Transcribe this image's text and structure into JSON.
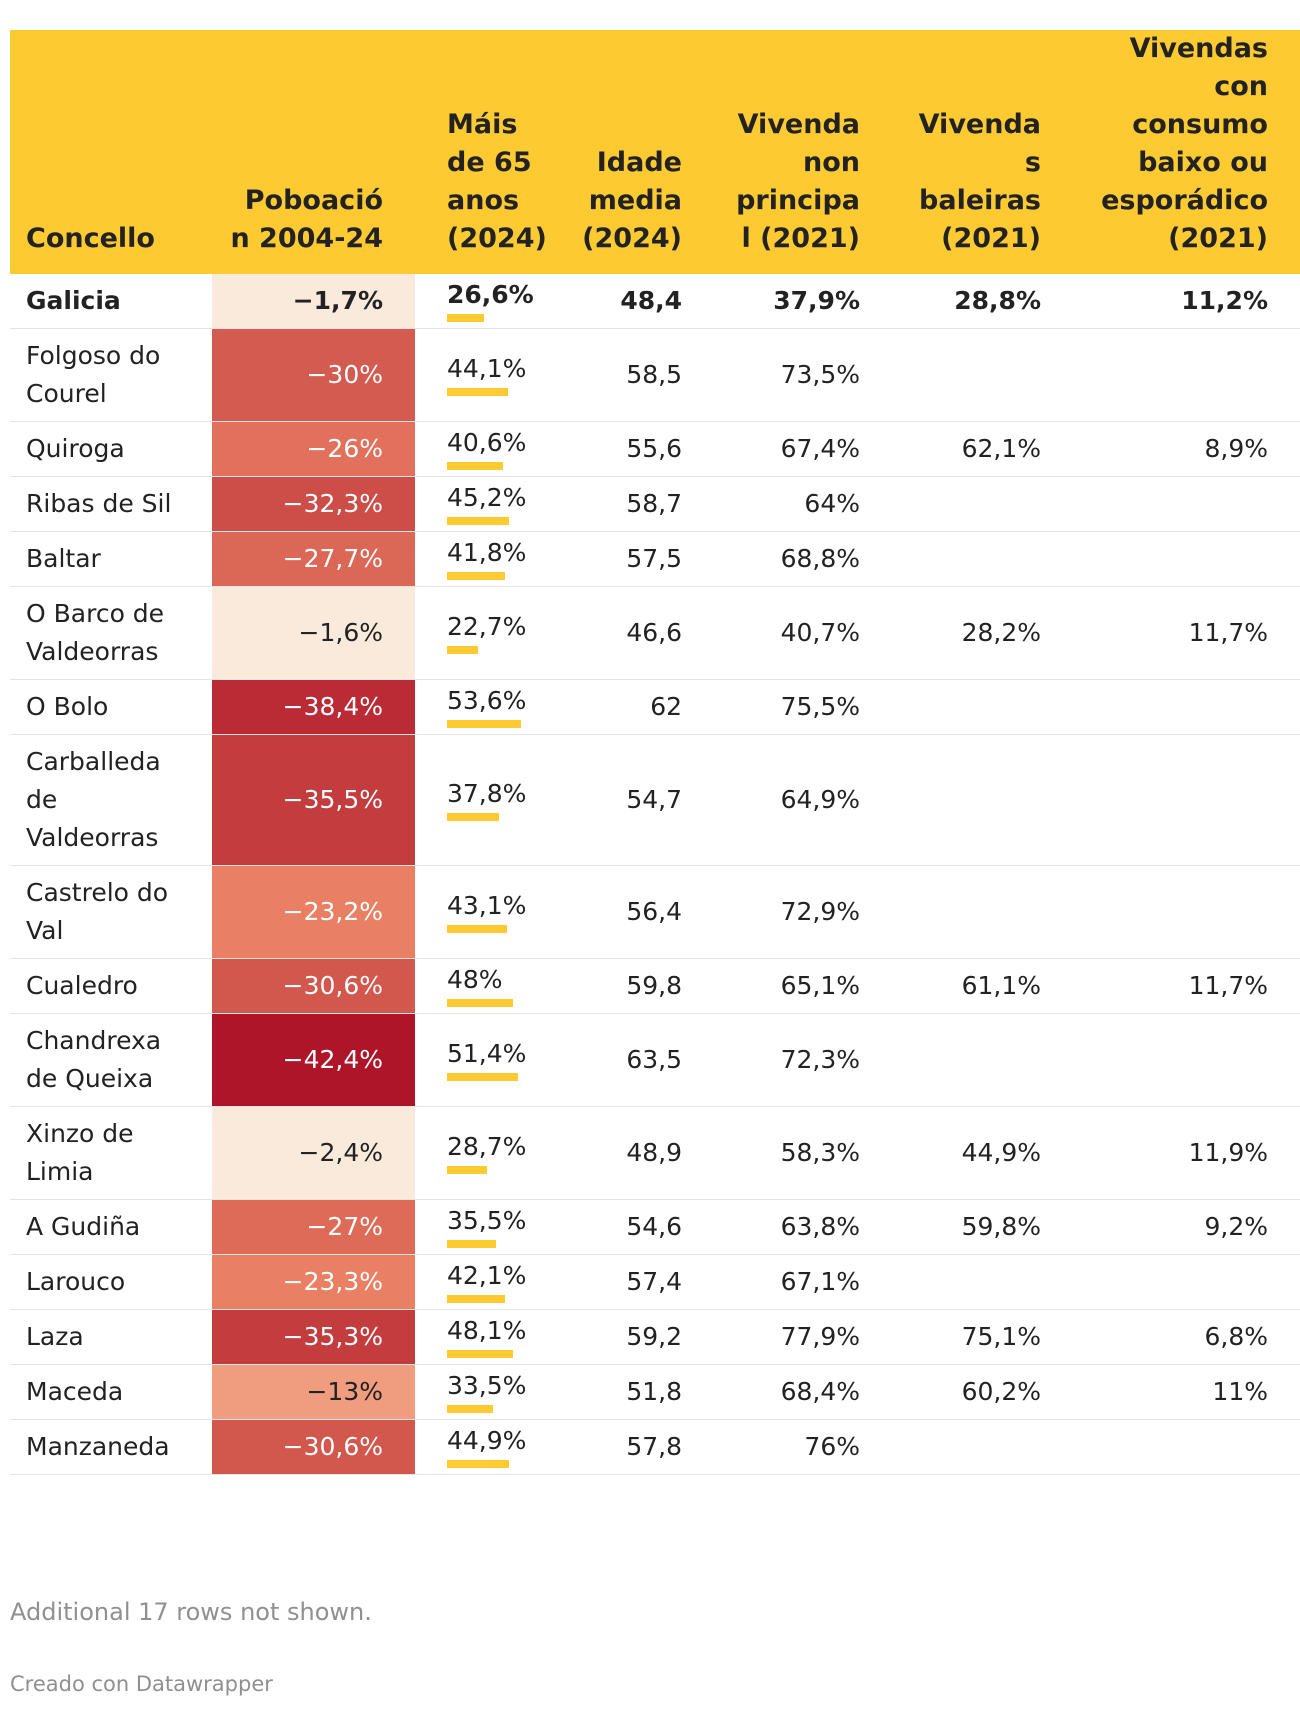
{
  "columns": [
    {
      "key": "name",
      "label": "Concello"
    },
    {
      "key": "pop",
      "label": "Poboación 2004-24"
    },
    {
      "key": "over65",
      "label": "Máis de 65 anos (2024)"
    },
    {
      "key": "age",
      "label": "Idade media (2024)"
    },
    {
      "key": "nonprincipal",
      "label": "Vivenda non principal (2021)"
    },
    {
      "key": "empty",
      "label": "Vivendas baleiras (2021)"
    },
    {
      "key": "lowuse",
      "label": "Vivendas con consumo baixo ou esporádico (2021)"
    }
  ],
  "rows": [
    {
      "name": "Galicia",
      "pop": "−1,7%",
      "pop_value": -1.7,
      "over65": "26,6%",
      "over65_value": 26.6,
      "age": "48,4",
      "nonprincipal": "37,9%",
      "empty": "28,8%",
      "lowuse": "11,2%",
      "bold": true
    },
    {
      "name": "Folgoso do Courel",
      "pop": "−30%",
      "pop_value": -30,
      "over65": "44,1%",
      "over65_value": 44.1,
      "age": "58,5",
      "nonprincipal": "73,5%",
      "empty": "",
      "lowuse": ""
    },
    {
      "name": "Quiroga",
      "pop": "−26%",
      "pop_value": -26,
      "over65": "40,6%",
      "over65_value": 40.6,
      "age": "55,6",
      "nonprincipal": "67,4%",
      "empty": "62,1%",
      "lowuse": "8,9%"
    },
    {
      "name": "Ribas de Sil",
      "pop": "−32,3%",
      "pop_value": -32.3,
      "over65": "45,2%",
      "over65_value": 45.2,
      "age": "58,7",
      "nonprincipal": "64%",
      "empty": "",
      "lowuse": ""
    },
    {
      "name": "Baltar",
      "pop": "−27,7%",
      "pop_value": -27.7,
      "over65": "41,8%",
      "over65_value": 41.8,
      "age": "57,5",
      "nonprincipal": "68,8%",
      "empty": "",
      "lowuse": ""
    },
    {
      "name": "O Barco de Valdeorras",
      "pop": "−1,6%",
      "pop_value": -1.6,
      "over65": "22,7%",
      "over65_value": 22.7,
      "age": "46,6",
      "nonprincipal": "40,7%",
      "empty": "28,2%",
      "lowuse": "11,7%"
    },
    {
      "name": "O Bolo",
      "pop": "−38,4%",
      "pop_value": -38.4,
      "over65": "53,6%",
      "over65_value": 53.6,
      "age": "62",
      "nonprincipal": "75,5%",
      "empty": "",
      "lowuse": ""
    },
    {
      "name": "Carballeda de Valdeorras",
      "pop": "−35,5%",
      "pop_value": -35.5,
      "over65": "37,8%",
      "over65_value": 37.8,
      "age": "54,7",
      "nonprincipal": "64,9%",
      "empty": "",
      "lowuse": ""
    },
    {
      "name": "Castrelo do Val",
      "pop": "−23,2%",
      "pop_value": -23.2,
      "over65": "43,1%",
      "over65_value": 43.1,
      "age": "56,4",
      "nonprincipal": "72,9%",
      "empty": "",
      "lowuse": ""
    },
    {
      "name": "Cualedro",
      "pop": "−30,6%",
      "pop_value": -30.6,
      "over65": "48%",
      "over65_value": 48,
      "age": "59,8",
      "nonprincipal": "65,1%",
      "empty": "61,1%",
      "lowuse": "11,7%"
    },
    {
      "name": "Chandrexa de Queixa",
      "pop": "−42,4%",
      "pop_value": -42.4,
      "over65": "51,4%",
      "over65_value": 51.4,
      "age": "63,5",
      "nonprincipal": "72,3%",
      "empty": "",
      "lowuse": ""
    },
    {
      "name": "Xinzo de Limia",
      "pop": "−2,4%",
      "pop_value": -2.4,
      "over65": "28,7%",
      "over65_value": 28.7,
      "age": "48,9",
      "nonprincipal": "58,3%",
      "empty": "44,9%",
      "lowuse": "11,9%"
    },
    {
      "name": "A Gudiña",
      "pop": "−27%",
      "pop_value": -27,
      "over65": "35,5%",
      "over65_value": 35.5,
      "age": "54,6",
      "nonprincipal": "63,8%",
      "empty": "59,8%",
      "lowuse": "9,2%"
    },
    {
      "name": "Larouco",
      "pop": "−23,3%",
      "pop_value": -23.3,
      "over65": "42,1%",
      "over65_value": 42.1,
      "age": "57,4",
      "nonprincipal": "67,1%",
      "empty": "",
      "lowuse": ""
    },
    {
      "name": "Laza",
      "pop": "−35,3%",
      "pop_value": -35.3,
      "over65": "48,1%",
      "over65_value": 48.1,
      "age": "59,2",
      "nonprincipal": "77,9%",
      "empty": "75,1%",
      "lowuse": "6,8%"
    },
    {
      "name": "Maceda",
      "pop": "−13%",
      "pop_value": -13,
      "over65": "33,5%",
      "over65_value": 33.5,
      "age": "51,8",
      "nonprincipal": "68,4%",
      "empty": "60,2%",
      "lowuse": "11%"
    },
    {
      "name": "Manzaneda",
      "pop": "−30,6%",
      "pop_value": -30.6,
      "over65": "44,9%",
      "over65_value": 44.9,
      "age": "57,8",
      "nonprincipal": "76%",
      "empty": "",
      "lowuse": ""
    }
  ],
  "colors": {
    "header_bg": "#fdca32",
    "bar": "#fdca32",
    "heat_light": "#f9eadb",
    "heat_mid": "#e98064",
    "heat_dark": "#ae1528"
  },
  "footer_note": "Additional 17 rows not shown.",
  "credit": "Creado con Datawrapper",
  "chart_data": {
    "type": "table",
    "columns": [
      "Concello",
      "Poboación 2004-24",
      "Máis de 65 anos (2024)",
      "Idade media (2024)",
      "Vivenda non principal (2021)",
      "Vivendas baleiras (2021)",
      "Vivendas con consumo baixo ou esporádico (2021)"
    ],
    "rows": [
      [
        "Galicia",
        -1.7,
        26.6,
        48.4,
        37.9,
        28.8,
        11.2
      ],
      [
        "Folgoso do Courel",
        -30,
        44.1,
        58.5,
        73.5,
        null,
        null
      ],
      [
        "Quiroga",
        -26,
        40.6,
        55.6,
        67.4,
        62.1,
        8.9
      ],
      [
        "Ribas de Sil",
        -32.3,
        45.2,
        58.7,
        64,
        null,
        null
      ],
      [
        "Baltar",
        -27.7,
        41.8,
        57.5,
        68.8,
        null,
        null
      ],
      [
        "O Barco de Valdeorras",
        -1.6,
        22.7,
        46.6,
        40.7,
        28.2,
        11.7
      ],
      [
        "O Bolo",
        -38.4,
        53.6,
        62,
        75.5,
        null,
        null
      ],
      [
        "Carballeda de Valdeorras",
        -35.5,
        37.8,
        54.7,
        64.9,
        null,
        null
      ],
      [
        "Castrelo do Val",
        -23.2,
        43.1,
        56.4,
        72.9,
        null,
        null
      ],
      [
        "Cualedro",
        -30.6,
        48,
        59.8,
        65.1,
        61.1,
        11.7
      ],
      [
        "Chandrexa de Queixa",
        -42.4,
        51.4,
        63.5,
        72.3,
        null,
        null
      ],
      [
        "Xinzo de Limia",
        -2.4,
        28.7,
        48.9,
        58.3,
        44.9,
        11.9
      ],
      [
        "A Gudiña",
        -27,
        35.5,
        54.6,
        63.8,
        59.8,
        9.2
      ],
      [
        "Larouco",
        -23.3,
        42.1,
        57.4,
        67.1,
        null,
        null
      ],
      [
        "Laza",
        -35.3,
        48.1,
        59.2,
        77.9,
        75.1,
        6.8
      ],
      [
        "Maceda",
        -13,
        33.5,
        51.8,
        68.4,
        60.2,
        11
      ],
      [
        "Manzaneda",
        -30.6,
        44.9,
        57.8,
        76,
        null,
        null
      ]
    ]
  }
}
